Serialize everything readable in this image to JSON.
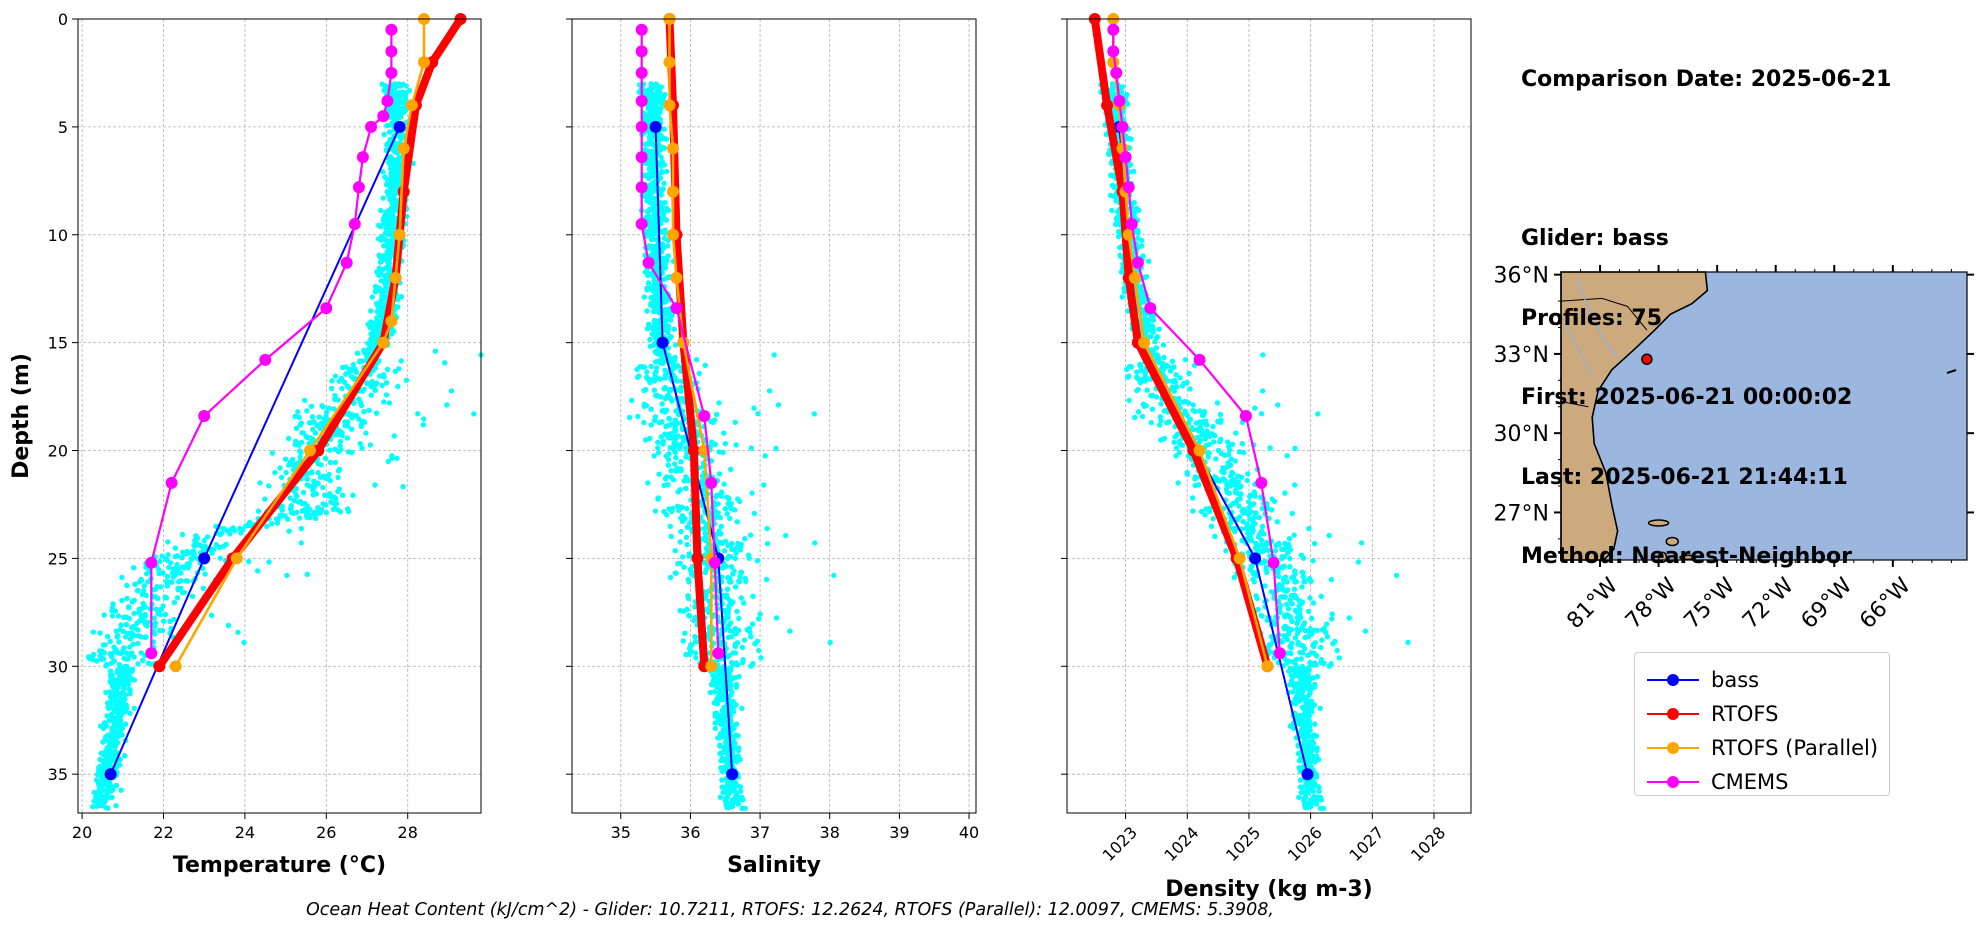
{
  "info": {
    "comparison": "Comparison Date: 2025-06-21",
    "glider": "Glider: bass",
    "profiles": "Profiles: 75",
    "first": "First: 2025-06-21 00:00:02",
    "last": "Last: 2025-06-21 21:44:11",
    "method": "Method: Nearest-Neighbor"
  },
  "footer": "Ocean Heat Content (kJ/cm^2) - Glider: 10.7211,  RTOFS: 12.2624,  RTOFS (Parallel): 12.0097,  CMEMS: 5.3908,",
  "legend": [
    {
      "name": "bass",
      "color": "#0000ff"
    },
    {
      "name": "RTOFS",
      "color": "#ff0000"
    },
    {
      "name": "RTOFS (Parallel)",
      "color": "#ffa500"
    },
    {
      "name": "CMEMS",
      "color": "#ff00ff"
    }
  ],
  "colors": {
    "scatter": "#00ffff",
    "ocean": "#9bb7e0",
    "land": "#cdaa7d",
    "grid": "#b0b0b0"
  },
  "chart_data": [
    {
      "type": "line",
      "xlabel": "Temperature (°C)",
      "ylabel": "Depth (m)",
      "xlim": [
        19.9,
        29.8
      ],
      "ylim": [
        36.8,
        0
      ],
      "xticks": [
        20,
        22,
        24,
        26,
        28
      ],
      "yticks": [
        0,
        5,
        10,
        15,
        20,
        25,
        30,
        35
      ],
      "grid": true,
      "scatter_profile": [
        [
          27.7,
          3
        ],
        [
          27.7,
          8
        ],
        [
          27.5,
          13
        ],
        [
          27.0,
          16.5
        ],
        [
          26.0,
          19
        ],
        [
          25.5,
          21
        ],
        [
          25.5,
          23
        ],
        [
          23,
          24
        ],
        [
          22.0,
          26
        ],
        [
          21.5,
          28
        ],
        [
          21.0,
          30
        ],
        [
          20.8,
          33
        ],
        [
          20.5,
          36
        ]
      ],
      "series": [
        {
          "name": "bass",
          "x": [
            27.8,
            23.0,
            20.7
          ],
          "y": [
            5,
            25,
            35
          ]
        },
        {
          "name": "RTOFS",
          "x": [
            29.3,
            28.6,
            28.2,
            27.9,
            27.7,
            27.4,
            25.8,
            23.7,
            21.9
          ],
          "y": [
            0,
            2,
            4,
            8,
            12,
            15,
            20,
            25,
            30
          ]
        },
        {
          "name": "RTOFS (Parallel)",
          "x": [
            28.4,
            28.4,
            28.1,
            27.9,
            27.8,
            27.7,
            27.6,
            27.4,
            25.6,
            23.8,
            22.3
          ],
          "y": [
            0,
            2,
            4,
            6,
            10,
            12,
            14,
            15,
            20,
            25,
            30
          ]
        },
        {
          "name": "CMEMS",
          "x": [
            27.6,
            27.6,
            27.6,
            27.5,
            27.4,
            27.1,
            26.9,
            26.8,
            26.7,
            26.5,
            26.0,
            24.5,
            23.0,
            22.2,
            21.7,
            21.7
          ],
          "y": [
            0.5,
            1.5,
            2.5,
            3.8,
            4.5,
            5.0,
            6.4,
            7.8,
            9.5,
            11.3,
            13.4,
            15.8,
            18.4,
            21.5,
            25.2,
            29.4
          ]
        }
      ]
    },
    {
      "type": "line",
      "xlabel": "Salinity",
      "ylabel": "",
      "xlim": [
        34.3,
        40.1
      ],
      "ylim": [
        36.8,
        0
      ],
      "xticks": [
        35,
        36,
        37,
        38,
        39,
        40
      ],
      "yticks": [
        0,
        5,
        10,
        15,
        20,
        25,
        30,
        35
      ],
      "grid": true,
      "scatter_profile": [
        [
          35.45,
          3
        ],
        [
          35.5,
          10
        ],
        [
          35.6,
          15
        ],
        [
          35.8,
          18
        ],
        [
          36.0,
          21
        ],
        [
          36.3,
          24
        ],
        [
          36.4,
          28
        ],
        [
          36.5,
          32
        ],
        [
          36.6,
          36
        ]
      ],
      "series": [
        {
          "name": "bass",
          "x": [
            35.5,
            35.6,
            36.4,
            36.6
          ],
          "y": [
            5,
            15,
            25,
            35
          ]
        },
        {
          "name": "RTOFS",
          "x": [
            35.7,
            35.75,
            35.8,
            35.9,
            36.05,
            36.1,
            36.2
          ],
          "y": [
            0,
            4,
            10,
            15,
            20,
            25,
            30
          ]
        },
        {
          "name": "RTOFS (Parallel)",
          "x": [
            35.7,
            35.7,
            35.7,
            35.75,
            35.75,
            35.75,
            35.8,
            35.9,
            36.2,
            36.3,
            36.3
          ],
          "y": [
            0,
            2,
            4,
            6,
            8,
            10,
            12,
            15,
            20,
            25,
            30
          ]
        },
        {
          "name": "CMEMS",
          "x": [
            35.3,
            35.3,
            35.3,
            35.3,
            35.3,
            35.3,
            35.3,
            35.3,
            35.4,
            35.8,
            36.2,
            36.3,
            36.35,
            36.4
          ],
          "y": [
            0.5,
            1.5,
            2.5,
            3.8,
            5,
            6.4,
            7.8,
            9.5,
            11.3,
            13.4,
            18.4,
            21.5,
            25.2,
            29.4
          ]
        }
      ]
    },
    {
      "type": "line",
      "xlabel": "Density (kg m-3)",
      "ylabel": "",
      "xlim": [
        1022.05,
        1028.6
      ],
      "ylim": [
        36.8,
        0
      ],
      "xticks": [
        1023,
        1024,
        1025,
        1026,
        1027,
        1028
      ],
      "yticks": [
        0,
        5,
        10,
        15,
        20,
        25,
        30,
        35
      ],
      "grid": true,
      "scatter_profile": [
        [
          1022.8,
          3
        ],
        [
          1022.95,
          8
        ],
        [
          1023.2,
          13
        ],
        [
          1023.6,
          17
        ],
        [
          1024.3,
          20
        ],
        [
          1024.9,
          23
        ],
        [
          1025.5,
          26
        ],
        [
          1025.8,
          29
        ],
        [
          1026.0,
          36
        ]
      ],
      "series": [
        {
          "name": "bass",
          "x": [
            1022.9,
            1023.2,
            1025.1,
            1025.95
          ],
          "y": [
            5,
            15,
            25,
            35
          ]
        },
        {
          "name": "RTOFS",
          "x": [
            1022.5,
            1022.7,
            1022.95,
            1023.05,
            1023.2,
            1024.1,
            1024.8,
            1025.3
          ],
          "y": [
            0,
            4,
            8,
            12,
            15,
            20,
            25,
            30
          ]
        },
        {
          "name": "RTOFS (Parallel)",
          "x": [
            1022.8,
            1022.8,
            1022.9,
            1022.95,
            1023.0,
            1023.05,
            1023.15,
            1023.3,
            1024.2,
            1024.85,
            1025.3
          ],
          "y": [
            0,
            2,
            4,
            6,
            8,
            10,
            12,
            15,
            20,
            25,
            30
          ]
        },
        {
          "name": "CMEMS",
          "x": [
            1022.8,
            1022.8,
            1022.85,
            1022.9,
            1022.95,
            1023.0,
            1023.05,
            1023.1,
            1023.2,
            1023.4,
            1024.2,
            1024.95,
            1025.2,
            1025.4,
            1025.5
          ],
          "y": [
            0.5,
            1.5,
            2.5,
            3.8,
            5,
            6.4,
            7.8,
            9.5,
            11.3,
            13.4,
            15.8,
            18.4,
            21.5,
            25.2,
            29.4
          ]
        }
      ]
    }
  ],
  "map": {
    "lat_labels": [
      "36°N",
      "33°N",
      "30°N",
      "27°N"
    ],
    "lon_labels": [
      "81°W",
      "78°W",
      "75°W",
      "72°W",
      "69°W",
      "66°W"
    ],
    "glider_position": {
      "lon": -78.6,
      "lat": 32.8
    },
    "extent": {
      "lon": [
        -83.0,
        -62.2
      ],
      "lat": [
        25.2,
        36.1
      ]
    }
  }
}
